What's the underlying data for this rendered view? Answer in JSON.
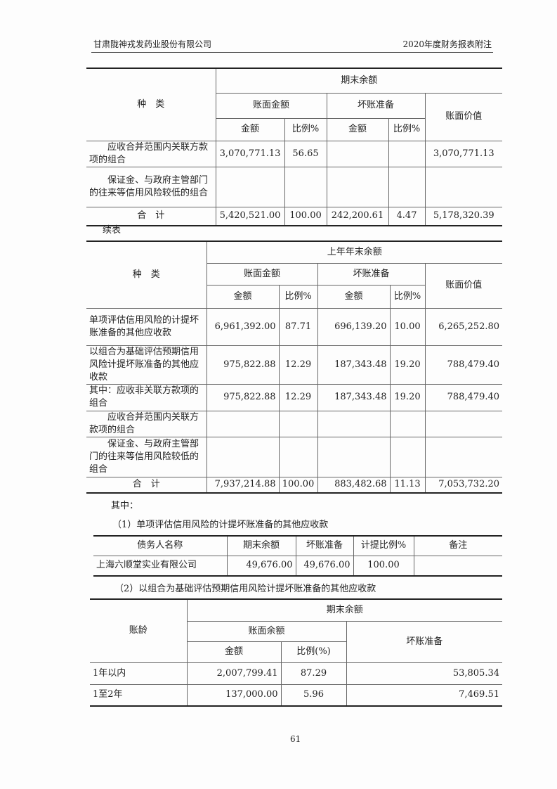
{
  "header": {
    "company": "甘肃陇神戎发药业股份有限公司",
    "doc": "2020年度财务报表附注"
  },
  "t1": {
    "h_category": "种　类",
    "h_period": "期末余额",
    "h_book": "账面金额",
    "h_bad": "坏账准备",
    "h_value": "账面价值",
    "h_amt": "金额",
    "h_ratio": "比例%",
    "rows": [
      {
        "label": "应收合并范围内关联方款项的组合",
        "c": [
          "3,070,771.13",
          "56.65",
          "",
          "",
          "3,070,771.13"
        ]
      },
      {
        "label": "保证金、与政府主管部门的往来等信用风险较低的组合",
        "c": [
          "",
          "",
          "",
          "",
          ""
        ]
      },
      {
        "label": "合　计",
        "c": [
          "5,420,521.00",
          "100.00",
          "242,200.61",
          "4.47",
          "5,178,320.39"
        ]
      }
    ]
  },
  "cont": "续表",
  "t2": {
    "h_category": "种　类",
    "h_period": "上年年末余额",
    "h_book": "账面金额",
    "h_bad": "坏账准备",
    "h_value": "账面价值",
    "h_amt": "金额",
    "h_ratio": "比例%",
    "rows": [
      {
        "label": "单项评估信用风险的计提坏账准备的其他应收款",
        "c": [
          "6,961,392.00",
          "87.71",
          "696,139.20",
          "10.00",
          "6,265,252.80"
        ]
      },
      {
        "label": "以组合为基础评估预期信用风险计提坏账准备的其他应收款",
        "c": [
          "975,822.88",
          "12.29",
          "187,343.48",
          "19.20",
          "788,479.40"
        ]
      },
      {
        "label": "其中：应收非关联方款项的组合",
        "c": [
          "975,822.88",
          "12.29",
          "187,343.48",
          "19.20",
          "788,479.40"
        ]
      },
      {
        "label": "应收合并范围内关联方款项的组合",
        "c": [
          "",
          "",
          "",
          "",
          ""
        ]
      },
      {
        "label": "保证金、与政府主管部门的往来等信用风险较低的组合",
        "c": [
          "",
          "",
          "",
          "",
          ""
        ]
      },
      {
        "label": "合　计",
        "c": [
          "7,937,214.88",
          "100.00",
          "883,482.68",
          "11.13",
          "7,053,732.20"
        ]
      }
    ]
  },
  "among": "其中：",
  "sec1": "（1）单项评估信用风险的计提坏账准备的其他应收款",
  "t3": {
    "headers": [
      "债务人名称",
      "期末余额",
      "坏账准备",
      "计提比例%",
      "备注"
    ],
    "rows": [
      [
        "上海六顺堂实业有限公司",
        "49,676.00",
        "49,676.00",
        "100.00",
        ""
      ]
    ]
  },
  "sec2": "（2）以组合为基础评估预期信用风险计提坏账准备的其他应收款",
  "t4": {
    "h_age": "账龄",
    "h_period": "期末余额",
    "h_book": "账面余额",
    "h_bad": "坏账准备",
    "h_amt": "金额",
    "h_ratio": "比例(%)",
    "rows": [
      [
        "1年以内",
        "2,007,799.41",
        "87.29",
        "53,805.34"
      ],
      [
        "1至2年",
        "137,000.00",
        "5.96",
        "7,469.51"
      ]
    ]
  },
  "page_number": "61"
}
